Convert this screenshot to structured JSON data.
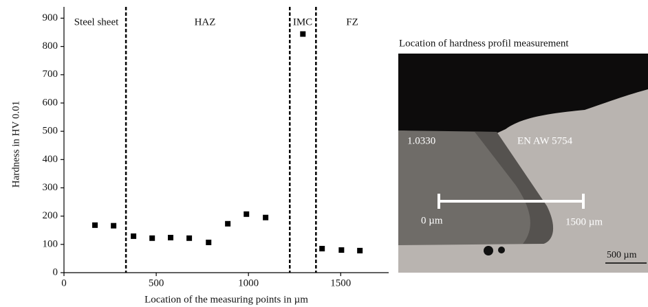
{
  "chart_data": {
    "type": "scatter",
    "y_label": "Hardness in HV 0.01",
    "x_label": "Location of the measuring points in µm",
    "regions": [
      "Steel sheet",
      "HAZ",
      "IMC",
      "FZ"
    ],
    "dividers": [
      336,
      1224,
      1366
    ],
    "x": [
      168,
      269,
      377,
      478,
      578,
      679,
      784,
      888,
      989,
      1093,
      1295,
      1399,
      1504,
      1604
    ],
    "values": [
      168,
      166,
      129,
      122,
      124,
      122,
      107,
      173,
      207,
      195,
      844,
      85,
      80,
      78
    ],
    "color": "#000000",
    "xlim": [
      0,
      1760
    ],
    "ylim": [
      0,
      940
    ],
    "xticks": [
      0,
      500,
      1000,
      1500
    ],
    "yticks": [
      0,
      100,
      200,
      300,
      400,
      500,
      600,
      700,
      800,
      900
    ]
  },
  "micrograph": {
    "title": "Location of hardness profil measurement",
    "steel_label": "1.0330",
    "aluminium_label": "EN AW 5754",
    "start_label": "0 µm",
    "end_label": "1500 µm",
    "scale_bar": "500 µm"
  }
}
